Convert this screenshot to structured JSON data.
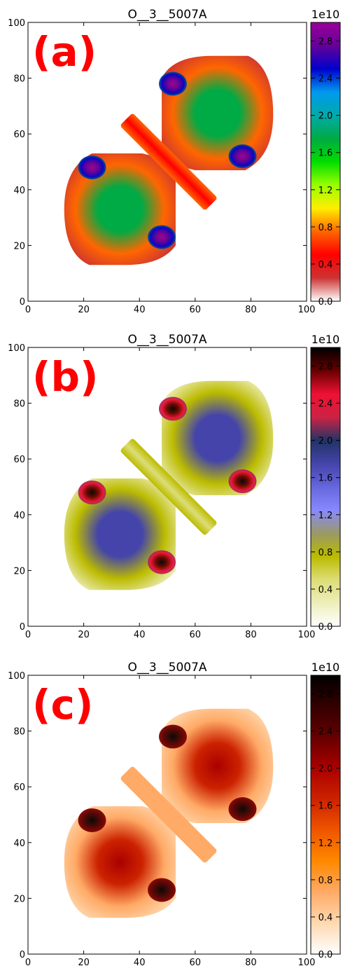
{
  "chart_data": [
    {
      "type": "heatmap",
      "panel_label": "(a)",
      "title": "O__3__5007A",
      "colormap": "nipy_spectral",
      "xlim": [
        0,
        100
      ],
      "ylim": [
        0,
        100
      ],
      "xticks": [
        0,
        20,
        40,
        60,
        80,
        100
      ],
      "yticks": [
        0,
        20,
        40,
        60,
        80,
        100
      ],
      "colorbar": {
        "range": [
          0.0,
          3.0
        ],
        "multiplier": "1e10",
        "ticks": [
          "0.0",
          "0.4",
          "0.8",
          "1.2",
          "1.6",
          "2.0",
          "2.4",
          "2.8"
        ]
      },
      "palette": [
        "#ffffff",
        "#cc3333",
        "#ff0000",
        "#ff6600",
        "#ffee00",
        "#99ff00",
        "#00dd00",
        "#00aa44",
        "#00aaaa",
        "#0099ee",
        "#0000cc",
        "#660099",
        "#990099"
      ]
    },
    {
      "type": "heatmap",
      "panel_label": "(b)",
      "title": "O__3__5007A",
      "colormap": "gist_stern_r",
      "xlim": [
        0,
        100
      ],
      "ylim": [
        0,
        100
      ],
      "xticks": [
        0,
        20,
        40,
        60,
        80,
        100
      ],
      "yticks": [
        0,
        20,
        40,
        60,
        80,
        100
      ],
      "colorbar": {
        "range": [
          0.0,
          3.0
        ],
        "multiplier": "1e10",
        "ticks": [
          "0.0",
          "0.4",
          "0.8",
          "1.2",
          "1.6",
          "2.0",
          "2.4",
          "2.8"
        ]
      },
      "palette": [
        "#ffffff",
        "#eeeebb",
        "#dddd77",
        "#bbbb00",
        "#999966",
        "#8888ff",
        "#6666dd",
        "#4444aa",
        "#223366",
        "#cc2244",
        "#ee1133",
        "#660000",
        "#000000"
      ]
    },
    {
      "type": "heatmap",
      "panel_label": "(c)",
      "title": "O__3__5007A",
      "colormap": "gist_heat_r",
      "xlim": [
        0,
        100
      ],
      "ylim": [
        0,
        100
      ],
      "xticks": [
        0,
        20,
        40,
        60,
        80,
        100
      ],
      "yticks": [
        0,
        20,
        40,
        60,
        80,
        100
      ],
      "colorbar": {
        "range": [
          0.0,
          3.0
        ],
        "multiplier": "1e10",
        "ticks": [
          "0.0",
          "0.4",
          "0.8",
          "1.2",
          "1.6",
          "2.0",
          "2.4",
          "2.8"
        ]
      },
      "palette": [
        "#ffffff",
        "#ffd9b0",
        "#ffaa66",
        "#ff8800",
        "#ee5500",
        "#cc2200",
        "#aa0000",
        "#660000",
        "#330000",
        "#000000"
      ]
    }
  ]
}
